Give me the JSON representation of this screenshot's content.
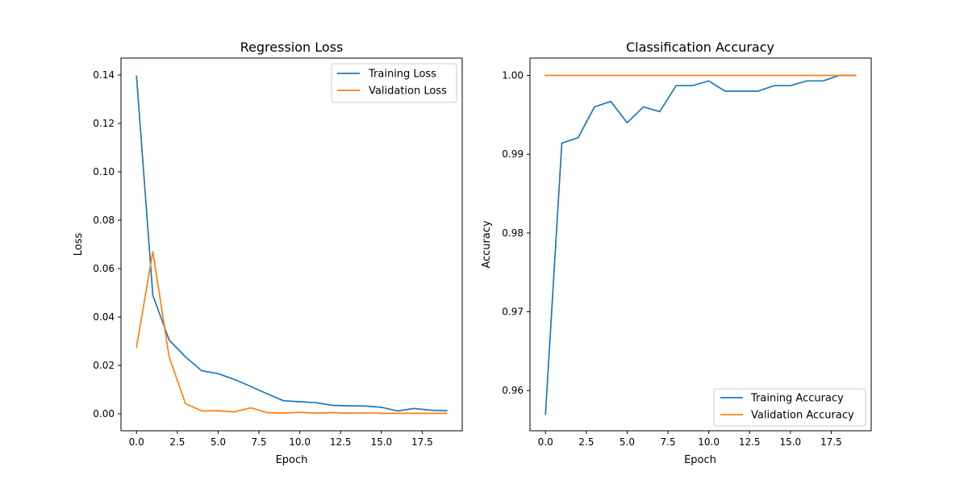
{
  "chart_data": [
    {
      "type": "line",
      "title": "Regression Loss",
      "xlabel": "Epoch",
      "ylabel": "Loss",
      "x": [
        0,
        1,
        2,
        3,
        4,
        5,
        6,
        7,
        8,
        9,
        10,
        11,
        12,
        13,
        14,
        15,
        16,
        17,
        18,
        19
      ],
      "xlim": [
        -0.95,
        19.95
      ],
      "ylim": [
        -0.007,
        0.147
      ],
      "xticks": [
        0.0,
        2.5,
        5.0,
        7.5,
        10.0,
        12.5,
        15.0,
        17.5
      ],
      "xtick_labels": [
        "0.0",
        "2.5",
        "5.0",
        "7.5",
        "10.0",
        "12.5",
        "15.0",
        "17.5"
      ],
      "yticks": [
        0.0,
        0.02,
        0.04,
        0.06,
        0.08,
        0.1,
        0.12,
        0.14
      ],
      "ytick_labels": [
        "0.00",
        "0.02",
        "0.04",
        "0.06",
        "0.08",
        "0.10",
        "0.12",
        "0.14"
      ],
      "legend_position": "top-right",
      "grid": false,
      "series": [
        {
          "name": "Training Loss",
          "color": "#1f77b4",
          "values": [
            0.1395,
            0.049,
            0.0305,
            0.0235,
            0.0178,
            0.0166,
            0.0142,
            0.0113,
            0.0083,
            0.0054,
            0.005,
            0.0046,
            0.0035,
            0.0033,
            0.0032,
            0.0027,
            0.0012,
            0.0022,
            0.0015,
            0.0013
          ]
        },
        {
          "name": "Validation Loss",
          "color": "#ff7f0e",
          "values": [
            0.0275,
            0.067,
            0.0235,
            0.0042,
            0.0012,
            0.0013,
            0.0008,
            0.0025,
            0.0005,
            0.0003,
            0.0006,
            0.0003,
            0.0005,
            0.0003,
            0.0004,
            0.0002,
            0.0002,
            0.0002,
            0.0002,
            0.0002
          ]
        }
      ]
    },
    {
      "type": "line",
      "title": "Classification Accuracy",
      "xlabel": "Epoch",
      "ylabel": "Accuracy",
      "x": [
        0,
        1,
        2,
        3,
        4,
        5,
        6,
        7,
        8,
        9,
        10,
        11,
        12,
        13,
        14,
        15,
        16,
        17,
        18,
        19
      ],
      "xlim": [
        -0.95,
        19.95
      ],
      "ylim": [
        0.9549,
        1.0022
      ],
      "xticks": [
        0.0,
        2.5,
        5.0,
        7.5,
        10.0,
        12.5,
        15.0,
        17.5
      ],
      "xtick_labels": [
        "0.0",
        "2.5",
        "5.0",
        "7.5",
        "10.0",
        "12.5",
        "15.0",
        "17.5"
      ],
      "yticks": [
        0.96,
        0.97,
        0.98,
        0.99,
        1.0
      ],
      "ytick_labels": [
        "0.96",
        "0.97",
        "0.98",
        "0.99",
        "1.00"
      ],
      "legend_position": "bottom-right",
      "grid": false,
      "series": [
        {
          "name": "Training Accuracy",
          "color": "#1f77b4",
          "values": [
            0.957,
            0.9914,
            0.9921,
            0.996,
            0.9967,
            0.994,
            0.996,
            0.9954,
            0.9987,
            0.9987,
            0.9993,
            0.998,
            0.998,
            0.998,
            0.9987,
            0.9987,
            0.9993,
            0.9993,
            1.0,
            1.0
          ]
        },
        {
          "name": "Validation Accuracy",
          "color": "#ff7f0e",
          "values": [
            1.0,
            1.0,
            1.0,
            1.0,
            1.0,
            1.0,
            1.0,
            1.0,
            1.0,
            1.0,
            1.0,
            1.0,
            1.0,
            1.0,
            1.0,
            1.0,
            1.0,
            1.0,
            1.0,
            1.0
          ]
        }
      ]
    }
  ]
}
